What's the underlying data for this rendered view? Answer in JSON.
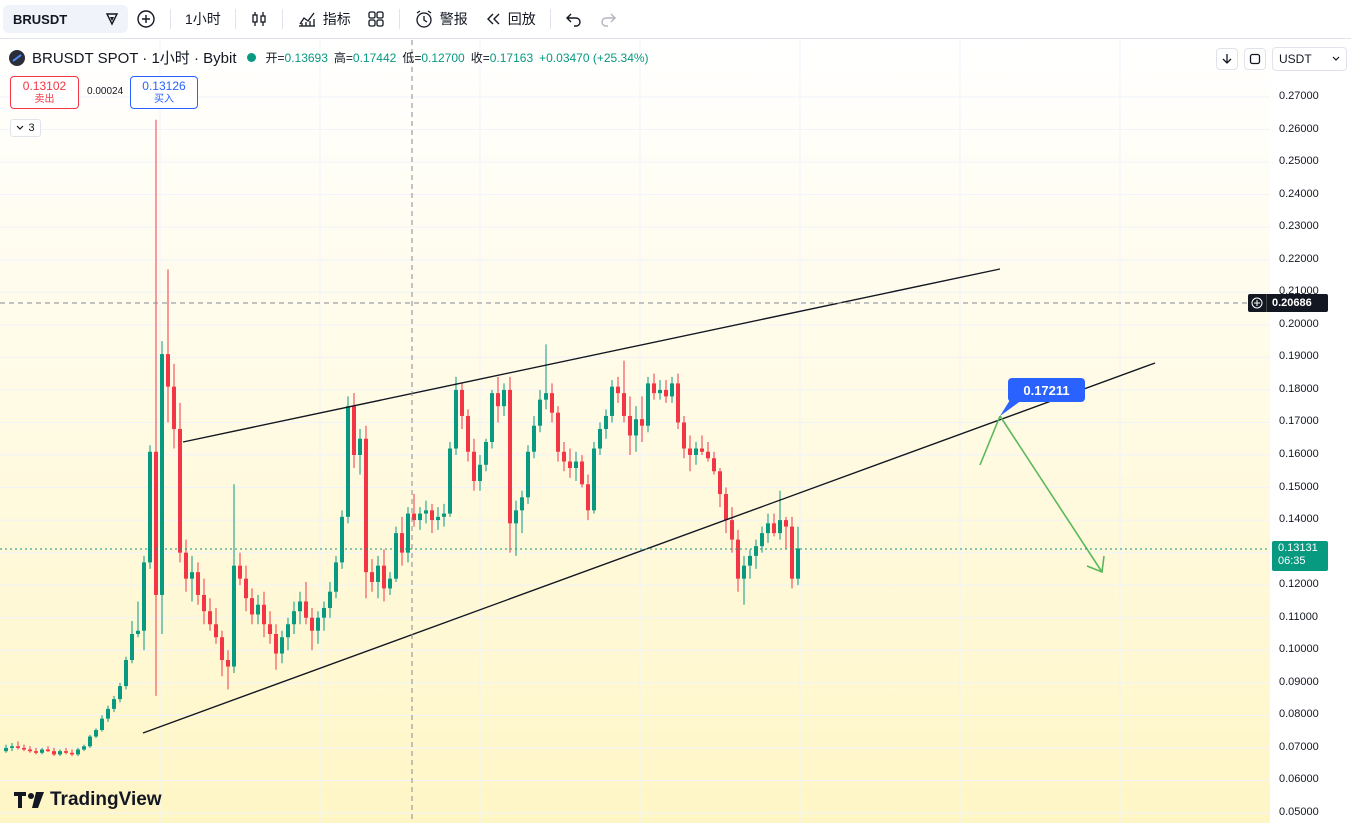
{
  "toolbar": {
    "symbol": "BRUSDT",
    "interval": "1小时",
    "indicators": "指标",
    "alerts": "警报",
    "replay": "回放"
  },
  "legend": {
    "title": "BRUSDT SPOT · 1小时 · Bybit",
    "open_label": "开=",
    "open": "0.13693",
    "high_label": "高=",
    "high": "0.17442",
    "low_label": "低=",
    "low": "0.12700",
    "close_label": "收=",
    "close": "0.17163",
    "change": "+0.03470 (+25.34%)"
  },
  "trade": {
    "sell_price": "0.13102",
    "sell_label": "卖出",
    "spread": "0.00024",
    "buy_price": "0.13126",
    "buy_label": "买入",
    "indicator_count": "3"
  },
  "right_controls": {
    "currency": "USDT"
  },
  "price_axis": {
    "ticks": [
      "0.27000",
      "0.26000",
      "0.25000",
      "0.24000",
      "0.23000",
      "0.22000",
      "0.21000",
      "0.20000",
      "0.19000",
      "0.18000",
      "0.17000",
      "0.16000",
      "0.15000",
      "0.14000",
      "0.13000",
      "0.12000",
      "0.11000",
      "0.10000",
      "0.09000",
      "0.08000",
      "0.07000",
      "0.06000",
      "0.05000"
    ],
    "crosshair_price": "0.20686",
    "last_price": "0.13131",
    "countdown": "06:35"
  },
  "annotation": {
    "target_price": "0.17211"
  },
  "brand": {
    "name": "TradingView"
  },
  "colors": {
    "up": "#089981",
    "down": "#f23645",
    "accent": "#2962ff"
  },
  "chart_data": {
    "type": "candlestick",
    "ylim": [
      0.05,
      0.27
    ],
    "candles": [
      [
        0.069,
        0.071,
        0.0685,
        0.07
      ],
      [
        0.07,
        0.0715,
        0.069,
        0.0705
      ],
      [
        0.0705,
        0.072,
        0.0695,
        0.07
      ],
      [
        0.07,
        0.071,
        0.069,
        0.0695
      ],
      [
        0.0695,
        0.0705,
        0.0685,
        0.069
      ],
      [
        0.069,
        0.07,
        0.068,
        0.0685
      ],
      [
        0.0685,
        0.07,
        0.068,
        0.0695
      ],
      [
        0.0695,
        0.0705,
        0.0688,
        0.069
      ],
      [
        0.069,
        0.07,
        0.0675,
        0.068
      ],
      [
        0.068,
        0.0695,
        0.0675,
        0.069
      ],
      [
        0.069,
        0.07,
        0.068,
        0.0685
      ],
      [
        0.0685,
        0.0695,
        0.0675,
        0.068
      ],
      [
        0.068,
        0.07,
        0.0675,
        0.0695
      ],
      [
        0.0695,
        0.071,
        0.069,
        0.0705
      ],
      [
        0.0705,
        0.074,
        0.07,
        0.0735
      ],
      [
        0.0735,
        0.076,
        0.073,
        0.0755
      ],
      [
        0.0755,
        0.08,
        0.075,
        0.079
      ],
      [
        0.079,
        0.083,
        0.078,
        0.082
      ],
      [
        0.082,
        0.086,
        0.081,
        0.085
      ],
      [
        0.085,
        0.09,
        0.084,
        0.089
      ],
      [
        0.089,
        0.098,
        0.088,
        0.097
      ],
      [
        0.097,
        0.109,
        0.096,
        0.105
      ],
      [
        0.105,
        0.115,
        0.104,
        0.106
      ],
      [
        0.106,
        0.129,
        0.1,
        0.127
      ],
      [
        0.127,
        0.163,
        0.125,
        0.161
      ],
      [
        0.161,
        0.263,
        0.086,
        0.117
      ],
      [
        0.117,
        0.195,
        0.105,
        0.191
      ],
      [
        0.191,
        0.217,
        0.17,
        0.181
      ],
      [
        0.181,
        0.188,
        0.162,
        0.168
      ],
      [
        0.168,
        0.176,
        0.127,
        0.13
      ],
      [
        0.13,
        0.134,
        0.118,
        0.122
      ],
      [
        0.122,
        0.129,
        0.115,
        0.124
      ],
      [
        0.124,
        0.127,
        0.114,
        0.117
      ],
      [
        0.117,
        0.122,
        0.108,
        0.112
      ],
      [
        0.112,
        0.116,
        0.106,
        0.108
      ],
      [
        0.108,
        0.113,
        0.102,
        0.104
      ],
      [
        0.104,
        0.106,
        0.092,
        0.097
      ],
      [
        0.097,
        0.1,
        0.088,
        0.095
      ],
      [
        0.095,
        0.151,
        0.093,
        0.126
      ],
      [
        0.126,
        0.13,
        0.12,
        0.122
      ],
      [
        0.122,
        0.126,
        0.112,
        0.116
      ],
      [
        0.116,
        0.119,
        0.108,
        0.111
      ],
      [
        0.111,
        0.117,
        0.108,
        0.114
      ],
      [
        0.114,
        0.118,
        0.104,
        0.108
      ],
      [
        0.108,
        0.112,
        0.102,
        0.105
      ],
      [
        0.105,
        0.108,
        0.094,
        0.099
      ],
      [
        0.099,
        0.106,
        0.096,
        0.104
      ],
      [
        0.104,
        0.11,
        0.1,
        0.108
      ],
      [
        0.108,
        0.115,
        0.105,
        0.112
      ],
      [
        0.112,
        0.118,
        0.108,
        0.115
      ],
      [
        0.115,
        0.121,
        0.108,
        0.11
      ],
      [
        0.11,
        0.113,
        0.1,
        0.106
      ],
      [
        0.106,
        0.112,
        0.102,
        0.11
      ],
      [
        0.11,
        0.115,
        0.106,
        0.113
      ],
      [
        0.113,
        0.121,
        0.11,
        0.118
      ],
      [
        0.118,
        0.129,
        0.116,
        0.127
      ],
      [
        0.127,
        0.143,
        0.125,
        0.141
      ],
      [
        0.141,
        0.178,
        0.139,
        0.175
      ],
      [
        0.175,
        0.179,
        0.156,
        0.16
      ],
      [
        0.16,
        0.168,
        0.154,
        0.165
      ],
      [
        0.165,
        0.169,
        0.116,
        0.124
      ],
      [
        0.124,
        0.128,
        0.118,
        0.121
      ],
      [
        0.121,
        0.129,
        0.116,
        0.126
      ],
      [
        0.126,
        0.131,
        0.115,
        0.119
      ],
      [
        0.119,
        0.124,
        0.117,
        0.122
      ],
      [
        0.122,
        0.138,
        0.121,
        0.136
      ],
      [
        0.136,
        0.141,
        0.126,
        0.13
      ],
      [
        0.13,
        0.144,
        0.127,
        0.142
      ],
      [
        0.142,
        0.148,
        0.138,
        0.14
      ],
      [
        0.14,
        0.144,
        0.137,
        0.142
      ],
      [
        0.142,
        0.146,
        0.139,
        0.143
      ],
      [
        0.143,
        0.145,
        0.136,
        0.14
      ],
      [
        0.14,
        0.144,
        0.137,
        0.141
      ],
      [
        0.141,
        0.145,
        0.138,
        0.142
      ],
      [
        0.142,
        0.164,
        0.141,
        0.162
      ],
      [
        0.162,
        0.184,
        0.16,
        0.18
      ],
      [
        0.18,
        0.182,
        0.168,
        0.172
      ],
      [
        0.172,
        0.174,
        0.158,
        0.161
      ],
      [
        0.161,
        0.165,
        0.149,
        0.152
      ],
      [
        0.152,
        0.16,
        0.149,
        0.157
      ],
      [
        0.157,
        0.165,
        0.155,
        0.164
      ],
      [
        0.164,
        0.18,
        0.162,
        0.179
      ],
      [
        0.179,
        0.184,
        0.17,
        0.175
      ],
      [
        0.175,
        0.182,
        0.172,
        0.18
      ],
      [
        0.18,
        0.184,
        0.13,
        0.139
      ],
      [
        0.139,
        0.146,
        0.129,
        0.143
      ],
      [
        0.143,
        0.149,
        0.136,
        0.147
      ],
      [
        0.147,
        0.163,
        0.145,
        0.161
      ],
      [
        0.161,
        0.172,
        0.159,
        0.169
      ],
      [
        0.169,
        0.18,
        0.167,
        0.177
      ],
      [
        0.177,
        0.194,
        0.174,
        0.179
      ],
      [
        0.179,
        0.182,
        0.17,
        0.173
      ],
      [
        0.173,
        0.175,
        0.158,
        0.161
      ],
      [
        0.161,
        0.164,
        0.155,
        0.158
      ],
      [
        0.158,
        0.162,
        0.153,
        0.156
      ],
      [
        0.156,
        0.161,
        0.152,
        0.158
      ],
      [
        0.158,
        0.16,
        0.15,
        0.151
      ],
      [
        0.151,
        0.154,
        0.14,
        0.143
      ],
      [
        0.143,
        0.164,
        0.142,
        0.162
      ],
      [
        0.162,
        0.17,
        0.16,
        0.168
      ],
      [
        0.168,
        0.174,
        0.165,
        0.172
      ],
      [
        0.172,
        0.183,
        0.17,
        0.181
      ],
      [
        0.181,
        0.184,
        0.176,
        0.179
      ],
      [
        0.179,
        0.189,
        0.17,
        0.172
      ],
      [
        0.172,
        0.178,
        0.16,
        0.166
      ],
      [
        0.166,
        0.175,
        0.161,
        0.171
      ],
      [
        0.171,
        0.178,
        0.164,
        0.169
      ],
      [
        0.169,
        0.184,
        0.167,
        0.182
      ],
      [
        0.182,
        0.185,
        0.177,
        0.179
      ],
      [
        0.179,
        0.183,
        0.177,
        0.18
      ],
      [
        0.18,
        0.183,
        0.176,
        0.178
      ],
      [
        0.178,
        0.184,
        0.176,
        0.182
      ],
      [
        0.182,
        0.185,
        0.168,
        0.17
      ],
      [
        0.17,
        0.172,
        0.159,
        0.162
      ],
      [
        0.162,
        0.166,
        0.155,
        0.16
      ],
      [
        0.16,
        0.164,
        0.157,
        0.162
      ],
      [
        0.162,
        0.166,
        0.16,
        0.161
      ],
      [
        0.161,
        0.164,
        0.158,
        0.159
      ],
      [
        0.159,
        0.161,
        0.154,
        0.155
      ],
      [
        0.155,
        0.156,
        0.144,
        0.148
      ],
      [
        0.148,
        0.15,
        0.136,
        0.14
      ],
      [
        0.14,
        0.144,
        0.13,
        0.134
      ],
      [
        0.134,
        0.137,
        0.118,
        0.122
      ],
      [
        0.122,
        0.129,
        0.114,
        0.126
      ],
      [
        0.126,
        0.131,
        0.122,
        0.129
      ],
      [
        0.129,
        0.134,
        0.125,
        0.132
      ],
      [
        0.132,
        0.138,
        0.13,
        0.136
      ],
      [
        0.136,
        0.142,
        0.133,
        0.139
      ],
      [
        0.139,
        0.142,
        0.135,
        0.136
      ],
      [
        0.136,
        0.149,
        0.134,
        0.14
      ],
      [
        0.14,
        0.141,
        0.131,
        0.138
      ],
      [
        0.138,
        0.141,
        0.119,
        0.122
      ],
      [
        0.122,
        0.138,
        0.12,
        0.1313
      ]
    ]
  }
}
